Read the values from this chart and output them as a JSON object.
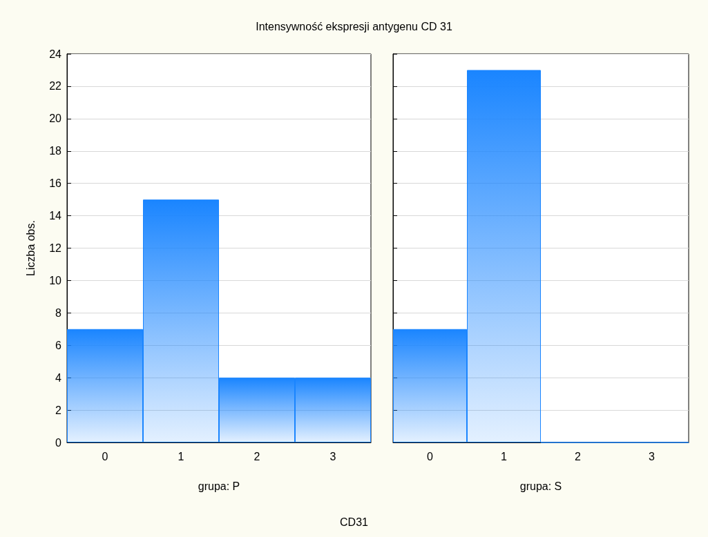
{
  "chart_data": [
    {
      "type": "bar",
      "title": "Intensywność ekspresji antygenu CD 31",
      "ylabel": "Liczba obs.",
      "xlabel": "grupa: P",
      "categories": [
        "0",
        "1",
        "2",
        "3"
      ],
      "values": [
        7,
        15,
        4,
        4
      ],
      "color": "#1a85ff",
      "ylim": [
        0,
        24
      ],
      "yticks": [
        0,
        2,
        4,
        6,
        8,
        10,
        12,
        14,
        16,
        18,
        20,
        22,
        24
      ],
      "grid": "y"
    },
    {
      "type": "bar",
      "xlabel": "grupa: S",
      "annotations": [
        "CD31"
      ],
      "categories": [
        "0",
        "1",
        "2",
        "3"
      ],
      "values": [
        7,
        23,
        0,
        0
      ],
      "color": "#1a85ff",
      "ylim": [
        0,
        24
      ],
      "yticks": [
        0,
        2,
        4,
        6,
        8,
        10,
        12,
        14,
        16,
        18,
        20,
        22,
        24
      ],
      "grid": "y",
      "tick_labels": "x"
    }
  ]
}
